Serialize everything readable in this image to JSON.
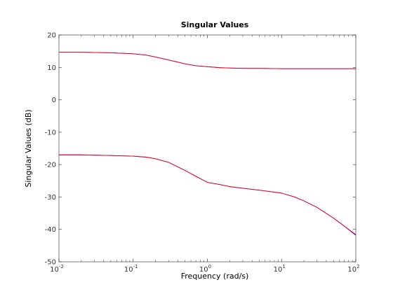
{
  "chart_data": {
    "type": "line",
    "title": "Singular Values",
    "xlabel": "Frequency (rad/s)",
    "ylabel": "Singular Values (dB)",
    "xscale": "log",
    "xlim": [
      0.01,
      100
    ],
    "ylim": [
      -50,
      20
    ],
    "grid": false,
    "x_ticks": [
      {
        "value": 0.01,
        "base": "10",
        "exp": "-2"
      },
      {
        "value": 0.1,
        "base": "10",
        "exp": "-1"
      },
      {
        "value": 1,
        "base": "10",
        "exp": "0"
      },
      {
        "value": 10,
        "base": "10",
        "exp": "1"
      },
      {
        "value": 100,
        "base": "10",
        "exp": "2"
      }
    ],
    "y_ticks": [
      20,
      10,
      0,
      -10,
      -20,
      -30,
      -40,
      -50
    ],
    "series": [
      {
        "color": "#0000ff",
        "x": [
          0.01,
          0.02,
          0.05,
          0.1,
          0.15,
          0.2,
          0.3,
          0.5,
          0.7,
          1,
          1.5,
          2,
          3,
          5,
          10,
          20,
          50,
          100
        ],
        "y": [
          14.7,
          14.7,
          14.5,
          14.2,
          13.8,
          13.2,
          12.3,
          11.1,
          10.5,
          10.2,
          9.9,
          9.8,
          9.7,
          9.7,
          9.6,
          9.6,
          9.6,
          9.6
        ]
      },
      {
        "color": "#ff0000",
        "x": [
          0.01,
          0.02,
          0.05,
          0.1,
          0.15,
          0.2,
          0.3,
          0.5,
          0.7,
          1,
          1.5,
          2,
          3,
          5,
          10,
          20,
          50,
          100
        ],
        "y": [
          14.7,
          14.7,
          14.5,
          14.2,
          13.8,
          13.2,
          12.3,
          11.1,
          10.5,
          10.2,
          9.9,
          9.8,
          9.7,
          9.7,
          9.6,
          9.6,
          9.6,
          9.6
        ]
      },
      {
        "color": "#0000ff",
        "x": [
          0.01,
          0.02,
          0.05,
          0.1,
          0.15,
          0.2,
          0.3,
          0.5,
          0.7,
          1,
          1.5,
          2,
          3,
          5,
          10,
          15,
          20,
          30,
          50,
          70,
          100
        ],
        "y": [
          -17.0,
          -17.0,
          -17.2,
          -17.4,
          -17.7,
          -18.2,
          -19.3,
          -21.8,
          -23.6,
          -25.5,
          -26.2,
          -26.8,
          -27.3,
          -27.9,
          -28.8,
          -30.0,
          -31.2,
          -33.2,
          -36.5,
          -39.0,
          -41.8
        ]
      },
      {
        "color": "#ff0000",
        "x": [
          0.01,
          0.02,
          0.05,
          0.1,
          0.15,
          0.2,
          0.3,
          0.5,
          0.7,
          1,
          1.5,
          2,
          3,
          5,
          10,
          15,
          20,
          30,
          50,
          70,
          100
        ],
        "y": [
          -17.0,
          -17.0,
          -17.2,
          -17.4,
          -17.7,
          -18.2,
          -19.3,
          -21.8,
          -23.6,
          -25.5,
          -26.2,
          -26.8,
          -27.3,
          -27.9,
          -28.8,
          -30.0,
          -31.2,
          -33.2,
          -36.5,
          -39.0,
          -41.6
        ]
      }
    ]
  }
}
